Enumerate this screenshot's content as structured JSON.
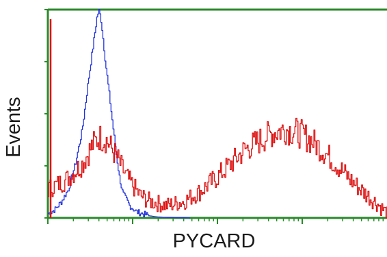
{
  "chart_data": {
    "type": "line",
    "title": "",
    "xlabel": "PYCARD",
    "ylabel": "Events",
    "x_scale": "log",
    "grid": false,
    "legend": "none",
    "colors": {
      "axes": "#2a8a2a",
      "control": "#2233dd",
      "sample": "#dd1111"
    },
    "series": [
      {
        "color": "#2233dd",
        "x": [
          0.0,
          0.02,
          0.04,
          0.06,
          0.08,
          0.1,
          0.11,
          0.12,
          0.13,
          0.135,
          0.14,
          0.145,
          0.15,
          0.155,
          0.16,
          0.165,
          0.17,
          0.18,
          0.19,
          0.2,
          0.21,
          0.22,
          0.24,
          0.26,
          0.28,
          0.3,
          0.32,
          0.34,
          0.36,
          0.38,
          0.4,
          0.42
        ],
        "y": [
          0.02,
          0.04,
          0.08,
          0.14,
          0.26,
          0.42,
          0.55,
          0.68,
          0.8,
          0.86,
          0.92,
          0.98,
          1.0,
          0.97,
          0.9,
          0.82,
          0.74,
          0.6,
          0.46,
          0.32,
          0.2,
          0.12,
          0.06,
          0.03,
          0.02,
          0.01,
          0.005,
          0.003,
          0.002,
          0.001,
          0.001,
          0.0
        ]
      },
      {
        "color": "#dd1111",
        "x": [
          0.0,
          0.05,
          0.1,
          0.13,
          0.15,
          0.17,
          0.2,
          0.23,
          0.27,
          0.3,
          0.35,
          0.4,
          0.45,
          0.5,
          0.55,
          0.58,
          0.62,
          0.66,
          0.7,
          0.74,
          0.78,
          0.82,
          0.86,
          0.9,
          0.94,
          0.97,
          1.0
        ],
        "y": [
          0.14,
          0.18,
          0.26,
          0.35,
          0.39,
          0.38,
          0.3,
          0.2,
          0.11,
          0.08,
          0.06,
          0.08,
          0.13,
          0.2,
          0.28,
          0.33,
          0.37,
          0.41,
          0.43,
          0.41,
          0.37,
          0.31,
          0.24,
          0.17,
          0.11,
          0.07,
          0.02
        ]
      }
    ],
    "xlim": [
      0,
      1
    ],
    "ylim": [
      0,
      1
    ]
  }
}
